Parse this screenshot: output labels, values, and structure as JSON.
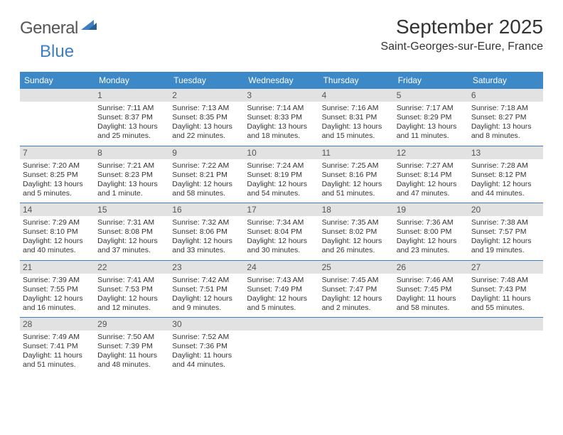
{
  "logo": {
    "part1": "General",
    "part2": "Blue"
  },
  "title": {
    "month": "September 2025",
    "location": "Saint-Georges-sur-Eure, France"
  },
  "colors": {
    "header_bg": "#3d88c7",
    "header_text": "#ffffff",
    "daybar_bg": "#e2e2e2",
    "daybar_text": "#555555",
    "rule": "#3d7fc0",
    "body_text": "#333333",
    "logo_gray": "#555555",
    "logo_blue": "#3d7fc0",
    "page_bg": "#ffffff"
  },
  "typography": {
    "title_fontsize": 28,
    "location_fontsize": 16,
    "dayheader_fontsize": 12,
    "daynumber_fontsize": 12,
    "cell_fontsize": 10.5
  },
  "day_headers": [
    "Sunday",
    "Monday",
    "Tuesday",
    "Wednesday",
    "Thursday",
    "Friday",
    "Saturday"
  ],
  "weeks": [
    [
      {
        "n": "",
        "sunrise": "",
        "sunset": "",
        "daylight": ""
      },
      {
        "n": "1",
        "sunrise": "Sunrise: 7:11 AM",
        "sunset": "Sunset: 8:37 PM",
        "daylight": "Daylight: 13 hours and 25 minutes."
      },
      {
        "n": "2",
        "sunrise": "Sunrise: 7:13 AM",
        "sunset": "Sunset: 8:35 PM",
        "daylight": "Daylight: 13 hours and 22 minutes."
      },
      {
        "n": "3",
        "sunrise": "Sunrise: 7:14 AM",
        "sunset": "Sunset: 8:33 PM",
        "daylight": "Daylight: 13 hours and 18 minutes."
      },
      {
        "n": "4",
        "sunrise": "Sunrise: 7:16 AM",
        "sunset": "Sunset: 8:31 PM",
        "daylight": "Daylight: 13 hours and 15 minutes."
      },
      {
        "n": "5",
        "sunrise": "Sunrise: 7:17 AM",
        "sunset": "Sunset: 8:29 PM",
        "daylight": "Daylight: 13 hours and 11 minutes."
      },
      {
        "n": "6",
        "sunrise": "Sunrise: 7:18 AM",
        "sunset": "Sunset: 8:27 PM",
        "daylight": "Daylight: 13 hours and 8 minutes."
      }
    ],
    [
      {
        "n": "7",
        "sunrise": "Sunrise: 7:20 AM",
        "sunset": "Sunset: 8:25 PM",
        "daylight": "Daylight: 13 hours and 5 minutes."
      },
      {
        "n": "8",
        "sunrise": "Sunrise: 7:21 AM",
        "sunset": "Sunset: 8:23 PM",
        "daylight": "Daylight: 13 hours and 1 minute."
      },
      {
        "n": "9",
        "sunrise": "Sunrise: 7:22 AM",
        "sunset": "Sunset: 8:21 PM",
        "daylight": "Daylight: 12 hours and 58 minutes."
      },
      {
        "n": "10",
        "sunrise": "Sunrise: 7:24 AM",
        "sunset": "Sunset: 8:19 PM",
        "daylight": "Daylight: 12 hours and 54 minutes."
      },
      {
        "n": "11",
        "sunrise": "Sunrise: 7:25 AM",
        "sunset": "Sunset: 8:16 PM",
        "daylight": "Daylight: 12 hours and 51 minutes."
      },
      {
        "n": "12",
        "sunrise": "Sunrise: 7:27 AM",
        "sunset": "Sunset: 8:14 PM",
        "daylight": "Daylight: 12 hours and 47 minutes."
      },
      {
        "n": "13",
        "sunrise": "Sunrise: 7:28 AM",
        "sunset": "Sunset: 8:12 PM",
        "daylight": "Daylight: 12 hours and 44 minutes."
      }
    ],
    [
      {
        "n": "14",
        "sunrise": "Sunrise: 7:29 AM",
        "sunset": "Sunset: 8:10 PM",
        "daylight": "Daylight: 12 hours and 40 minutes."
      },
      {
        "n": "15",
        "sunrise": "Sunrise: 7:31 AM",
        "sunset": "Sunset: 8:08 PM",
        "daylight": "Daylight: 12 hours and 37 minutes."
      },
      {
        "n": "16",
        "sunrise": "Sunrise: 7:32 AM",
        "sunset": "Sunset: 8:06 PM",
        "daylight": "Daylight: 12 hours and 33 minutes."
      },
      {
        "n": "17",
        "sunrise": "Sunrise: 7:34 AM",
        "sunset": "Sunset: 8:04 PM",
        "daylight": "Daylight: 12 hours and 30 minutes."
      },
      {
        "n": "18",
        "sunrise": "Sunrise: 7:35 AM",
        "sunset": "Sunset: 8:02 PM",
        "daylight": "Daylight: 12 hours and 26 minutes."
      },
      {
        "n": "19",
        "sunrise": "Sunrise: 7:36 AM",
        "sunset": "Sunset: 8:00 PM",
        "daylight": "Daylight: 12 hours and 23 minutes."
      },
      {
        "n": "20",
        "sunrise": "Sunrise: 7:38 AM",
        "sunset": "Sunset: 7:57 PM",
        "daylight": "Daylight: 12 hours and 19 minutes."
      }
    ],
    [
      {
        "n": "21",
        "sunrise": "Sunrise: 7:39 AM",
        "sunset": "Sunset: 7:55 PM",
        "daylight": "Daylight: 12 hours and 16 minutes."
      },
      {
        "n": "22",
        "sunrise": "Sunrise: 7:41 AM",
        "sunset": "Sunset: 7:53 PM",
        "daylight": "Daylight: 12 hours and 12 minutes."
      },
      {
        "n": "23",
        "sunrise": "Sunrise: 7:42 AM",
        "sunset": "Sunset: 7:51 PM",
        "daylight": "Daylight: 12 hours and 9 minutes."
      },
      {
        "n": "24",
        "sunrise": "Sunrise: 7:43 AM",
        "sunset": "Sunset: 7:49 PM",
        "daylight": "Daylight: 12 hours and 5 minutes."
      },
      {
        "n": "25",
        "sunrise": "Sunrise: 7:45 AM",
        "sunset": "Sunset: 7:47 PM",
        "daylight": "Daylight: 12 hours and 2 minutes."
      },
      {
        "n": "26",
        "sunrise": "Sunrise: 7:46 AM",
        "sunset": "Sunset: 7:45 PM",
        "daylight": "Daylight: 11 hours and 58 minutes."
      },
      {
        "n": "27",
        "sunrise": "Sunrise: 7:48 AM",
        "sunset": "Sunset: 7:43 PM",
        "daylight": "Daylight: 11 hours and 55 minutes."
      }
    ],
    [
      {
        "n": "28",
        "sunrise": "Sunrise: 7:49 AM",
        "sunset": "Sunset: 7:41 PM",
        "daylight": "Daylight: 11 hours and 51 minutes."
      },
      {
        "n": "29",
        "sunrise": "Sunrise: 7:50 AM",
        "sunset": "Sunset: 7:39 PM",
        "daylight": "Daylight: 11 hours and 48 minutes."
      },
      {
        "n": "30",
        "sunrise": "Sunrise: 7:52 AM",
        "sunset": "Sunset: 7:36 PM",
        "daylight": "Daylight: 11 hours and 44 minutes."
      },
      {
        "n": "",
        "sunrise": "",
        "sunset": "",
        "daylight": ""
      },
      {
        "n": "",
        "sunrise": "",
        "sunset": "",
        "daylight": ""
      },
      {
        "n": "",
        "sunrise": "",
        "sunset": "",
        "daylight": ""
      },
      {
        "n": "",
        "sunrise": "",
        "sunset": "",
        "daylight": ""
      }
    ]
  ]
}
